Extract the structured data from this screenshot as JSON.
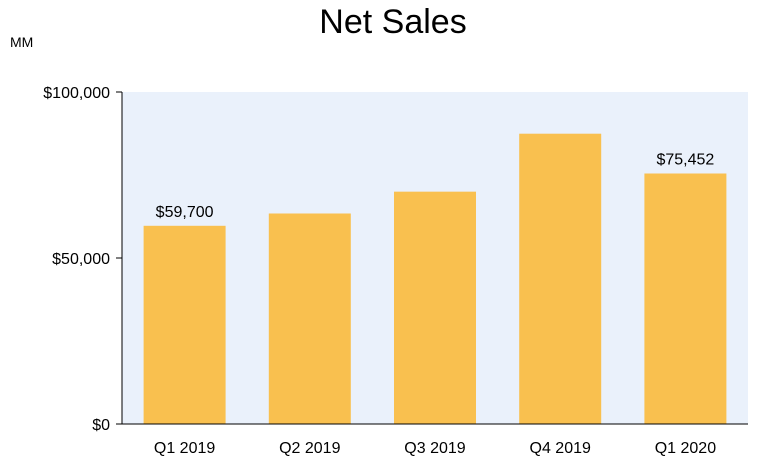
{
  "chart_data": {
    "type": "bar",
    "title": "Net Sales",
    "unit_label": "MM",
    "categories": [
      "Q1 2019",
      "Q2 2019",
      "Q3 2019",
      "Q4 2019",
      "Q1 2020"
    ],
    "values": [
      59700,
      63404,
      69981,
      87437,
      75452
    ],
    "data_labels": [
      "$59,700",
      "",
      "",
      "",
      "$75,452"
    ],
    "ylim": [
      0,
      100000
    ],
    "y_ticks": [
      {
        "value": 0,
        "label": "$0"
      },
      {
        "value": 50000,
        "label": "$50,000"
      },
      {
        "value": 100000,
        "label": "$100,000"
      }
    ],
    "grid": false,
    "colors": {
      "bar": "#F9C04F",
      "plot_background": "#EAF1FB",
      "axis": "#000000"
    }
  }
}
